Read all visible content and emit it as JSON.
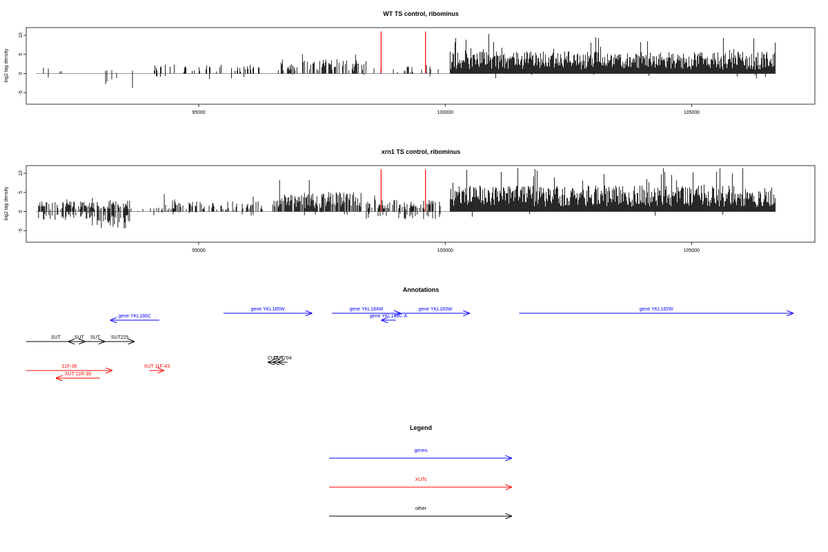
{
  "colors": {
    "gene": "#0000ff",
    "xut": "#ff0000",
    "other": "#000000",
    "highlight": "#ff0000",
    "signal": "#000000",
    "frame": "#000000"
  },
  "chart_data": [
    {
      "type": "bar",
      "title": "WT TS control, ribominus",
      "xlabel": "",
      "ylabel": "log2 tag density",
      "xlim": [
        91500,
        107500
      ],
      "ylim": [
        -8,
        12
      ],
      "x_ticks": [
        95000,
        100000,
        105000
      ],
      "x_tick_labels": [
        "95000",
        "100000",
        "105000"
      ],
      "y_ticks": [
        -5,
        0,
        5,
        10
      ],
      "y_tick_labels": [
        "-5",
        "0",
        "5",
        "10"
      ],
      "baseline": {
        "from": 91700,
        "to": 106700
      },
      "highlights": [
        {
          "x": 98700,
          "y": 11
        },
        {
          "x": 99600,
          "y": 11
        }
      ],
      "signal_segments": [
        {
          "from": 91850,
          "to": 92700,
          "density": 0.06,
          "pos_mean": 0.8,
          "pos_max": 2.2,
          "neg_mean": 0.8,
          "neg_max": 3.0,
          "neg_prob": 0.3
        },
        {
          "from": 92900,
          "to": 93700,
          "density": 0.12,
          "pos_mean": 0.6,
          "pos_max": 1.2,
          "neg_mean": 2.5,
          "neg_max": 5.2,
          "neg_prob": 0.9
        },
        {
          "from": 94000,
          "to": 96300,
          "density": 0.25,
          "pos_mean": 1.4,
          "pos_max": 4.6,
          "neg_mean": 1.0,
          "neg_max": 3.0,
          "neg_prob": 0.15
        },
        {
          "from": 96600,
          "to": 98400,
          "density": 0.55,
          "pos_mean": 2.2,
          "pos_max": 6.5,
          "neg_mean": 0.6,
          "neg_max": 1.5,
          "neg_prob": 0.04
        },
        {
          "from": 98500,
          "to": 99900,
          "density": 0.2,
          "pos_mean": 1.2,
          "pos_max": 3.5,
          "neg_mean": 0.8,
          "neg_max": 2.0,
          "neg_prob": 0.1
        },
        {
          "from": 100100,
          "to": 106700,
          "density": 1.0,
          "pos_mean": 3.4,
          "pos_max": 11.0,
          "neg_mean": 0.8,
          "neg_max": 2.0,
          "neg_prob": 0.01
        }
      ]
    },
    {
      "type": "bar",
      "title": "xrn1 TS control, ribominus",
      "xlabel": "",
      "ylabel": "log2 tag density",
      "xlim": [
        91500,
        107500
      ],
      "ylim": [
        -8,
        12
      ],
      "x_ticks": [
        95000,
        100000,
        105000
      ],
      "x_tick_labels": [
        "95000",
        "100000",
        "105000"
      ],
      "y_ticks": [
        -5,
        0,
        5,
        10
      ],
      "y_tick_labels": [
        "-5",
        "0",
        "5",
        "10"
      ],
      "baseline": {
        "from": 91700,
        "to": 106700
      },
      "highlights": [
        {
          "x": 98700,
          "y": 11
        },
        {
          "x": 99600,
          "y": 11
        }
      ],
      "signal_segments": [
        {
          "from": 91750,
          "to": 92800,
          "density": 0.6,
          "pos_mean": 1.6,
          "pos_max": 3.2,
          "neg_mean": 1.3,
          "neg_max": 3.5,
          "neg_prob": 0.55
        },
        {
          "from": 92800,
          "to": 93600,
          "density": 0.75,
          "pos_mean": 1.8,
          "pos_max": 4.0,
          "neg_mean": 2.8,
          "neg_max": 7.5,
          "neg_prob": 0.85
        },
        {
          "from": 93600,
          "to": 94300,
          "density": 0.1,
          "pos_mean": 0.6,
          "pos_max": 1.5,
          "neg_mean": 0.6,
          "neg_max": 1.5,
          "neg_prob": 0.3
        },
        {
          "from": 94300,
          "to": 96300,
          "density": 0.45,
          "pos_mean": 1.6,
          "pos_max": 5.2,
          "neg_mean": 0.8,
          "neg_max": 2.0,
          "neg_prob": 0.1
        },
        {
          "from": 96500,
          "to": 98300,
          "density": 0.85,
          "pos_mean": 3.0,
          "pos_max": 8.2,
          "neg_mean": 0.6,
          "neg_max": 1.5,
          "neg_prob": 0.03
        },
        {
          "from": 98400,
          "to": 99900,
          "density": 0.55,
          "pos_mean": 1.8,
          "pos_max": 4.2,
          "neg_mean": 1.2,
          "neg_max": 3.5,
          "neg_prob": 0.35
        },
        {
          "from": 100100,
          "to": 106700,
          "density": 1.0,
          "pos_mean": 4.0,
          "pos_max": 11.3,
          "neg_mean": 1.0,
          "neg_max": 3.5,
          "neg_prob": 0.01
        }
      ]
    }
  ],
  "annotations": {
    "title": "Annotations",
    "xlim": [
      91500,
      107500
    ],
    "items": [
      {
        "label": "gene YKL186C",
        "kind": "gene",
        "from": 93200,
        "to": 94200,
        "row": 1,
        "strand": "-"
      },
      {
        "label": "gene YKL185W",
        "kind": "gene",
        "from": 95500,
        "to": 97300,
        "row": 0,
        "strand": "+"
      },
      {
        "label": "gene YKL184W",
        "kind": "gene",
        "from": 97700,
        "to": 99100,
        "row": 0,
        "strand": "+"
      },
      {
        "label": "gene YKL183C-A",
        "kind": "gene",
        "from": 98700,
        "to": 99000,
        "row": 1,
        "strand": "-"
      },
      {
        "label": "gene YKL183W",
        "kind": "gene",
        "from": 99100,
        "to": 100500,
        "row": 0,
        "strand": "+"
      },
      {
        "label": "gene YKL182W",
        "kind": "gene",
        "from": 101500,
        "to": 107600,
        "row": 0,
        "strand": "+"
      },
      {
        "label": "SUT",
        "kind": "other",
        "from": 91500,
        "to": 92700,
        "row": 3,
        "strand": "+"
      },
      {
        "label": "SUT",
        "kind": "other",
        "from": 92350,
        "to": 92800,
        "row": 3,
        "strand": "-"
      },
      {
        "label": "SUT",
        "kind": "other",
        "from": 92700,
        "to": 93100,
        "row": 3,
        "strand": "+"
      },
      {
        "label": "SUT225",
        "kind": "other",
        "from": 93100,
        "to": 93700,
        "row": 3,
        "strand": "+"
      },
      {
        "label": "CUT",
        "kind": "other",
        "from": 96400,
        "to": 96600,
        "row": 4,
        "strand": "-"
      },
      {
        "label": "CUT",
        "kind": "other",
        "from": 96500,
        "to": 96750,
        "row": 4,
        "strand": "-"
      },
      {
        "label": "CUT704",
        "kind": "other",
        "from": 96600,
        "to": 96800,
        "row": 4,
        "strand": "-"
      },
      {
        "label": "11F-36",
        "kind": "xut",
        "from": 91000,
        "to": 93250,
        "row": 5,
        "strand": "+"
      },
      {
        "label": "XUT 11R-39",
        "kind": "xut",
        "from": 92100,
        "to": 93000,
        "row": 6,
        "strand": "-"
      },
      {
        "label": "XUT 11F-43",
        "kind": "xut",
        "from": 94000,
        "to": 94300,
        "row": 5,
        "strand": "+"
      }
    ]
  },
  "legend": {
    "title": "Legend",
    "items": [
      {
        "label": "genes",
        "kind": "gene"
      },
      {
        "label": "XUTs",
        "kind": "xut"
      },
      {
        "label": "other",
        "kind": "other"
      }
    ]
  }
}
